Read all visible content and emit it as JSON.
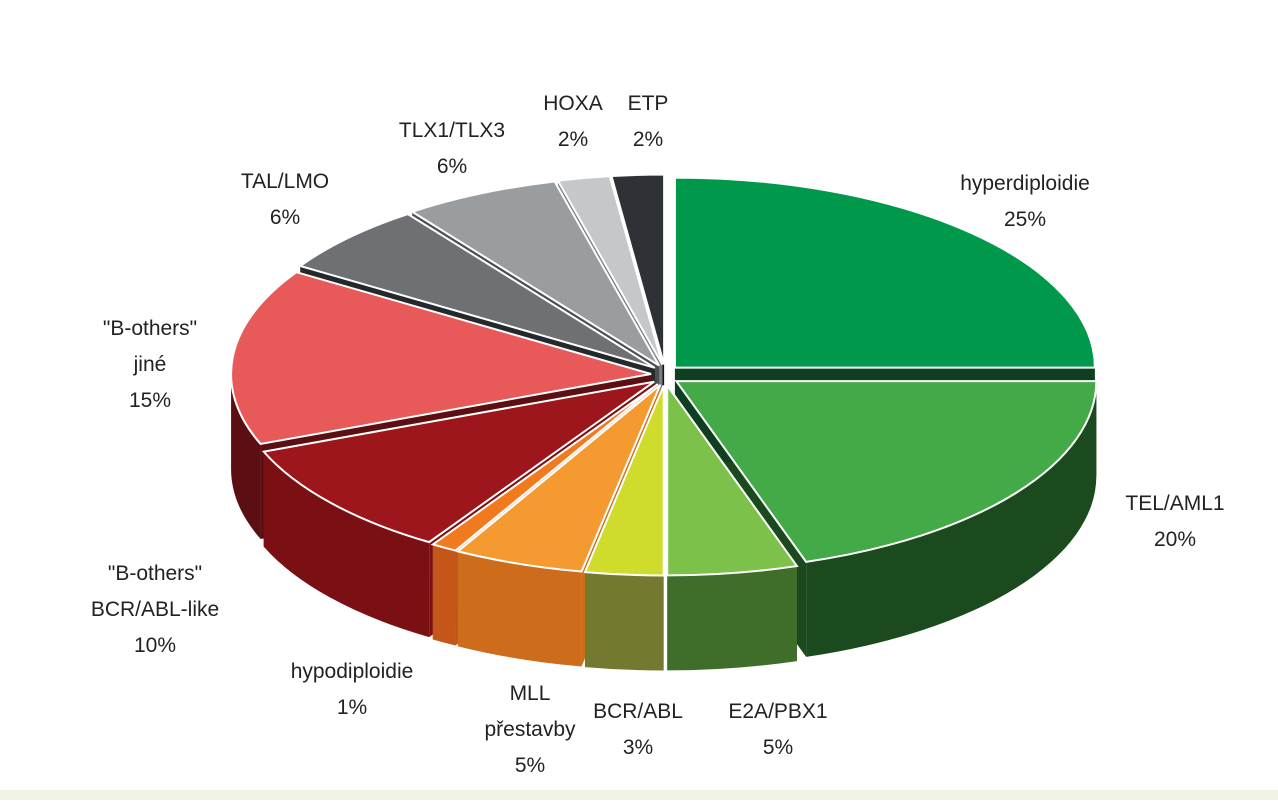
{
  "colors": {
    "background": "#ffffff",
    "bottom_strip": "#eef3e6",
    "label_text": "#222222"
  },
  "chart_data": {
    "type": "pie",
    "style": "3d-exploded",
    "title": "",
    "slices": [
      {
        "label_lines": [
          "hyperdiploidie"
        ],
        "value_label": "25%",
        "value": 25,
        "color": "#00994c",
        "side_color": "#0d3f20"
      },
      {
        "label_lines": [
          "TEL/AML1"
        ],
        "value_label": "20%",
        "value": 20,
        "color": "#44aa48",
        "side_color": "#1b4a1e"
      },
      {
        "label_lines": [
          "E2A/PBX1"
        ],
        "value_label": "5%",
        "value": 5,
        "color": "#7cc24a",
        "side_color": "#3f6e2b"
      },
      {
        "label_lines": [
          "BCR/ABL"
        ],
        "value_label": "3%",
        "value": 3,
        "color": "#cfdc2c",
        "side_color": "#737a30"
      },
      {
        "label_lines": [
          "MLL",
          "přestavby"
        ],
        "value_label": "5%",
        "value": 5,
        "color": "#f59a30",
        "side_color": "#cd6d1c"
      },
      {
        "label_lines": [
          "hypodiploidie"
        ],
        "value_label": "1%",
        "value": 1,
        "color": "#f27a1e",
        "side_color": "#c4561a"
      },
      {
        "label_lines": [
          "\"B-others\"",
          "BCR/ABL-like"
        ],
        "value_label": "10%",
        "value": 10,
        "color": "#9c161c",
        "side_color": "#7a1014"
      },
      {
        "label_lines": [
          "\"B-others\"",
          "jiné"
        ],
        "value_label": "15%",
        "value": 15,
        "color": "#e85a5a",
        "side_color": "#5c0f12"
      },
      {
        "label_lines": [
          "TAL/LMO"
        ],
        "value_label": "6%",
        "value": 6,
        "color": "#6e7073",
        "side_color": "#26292c"
      },
      {
        "label_lines": [
          "TLX1/TLX3"
        ],
        "value_label": "6%",
        "value": 6,
        "color": "#9a9d9f",
        "side_color": "#4c4f52"
      },
      {
        "label_lines": [
          "HOXA"
        ],
        "value_label": "2%",
        "value": 2,
        "color": "#c5c8ca",
        "side_color": "#7a7e80"
      },
      {
        "label_lines": [
          "ETP"
        ],
        "value_label": "2%",
        "value": 2,
        "color": "#2e3135",
        "side_color": "#141618"
      }
    ]
  }
}
